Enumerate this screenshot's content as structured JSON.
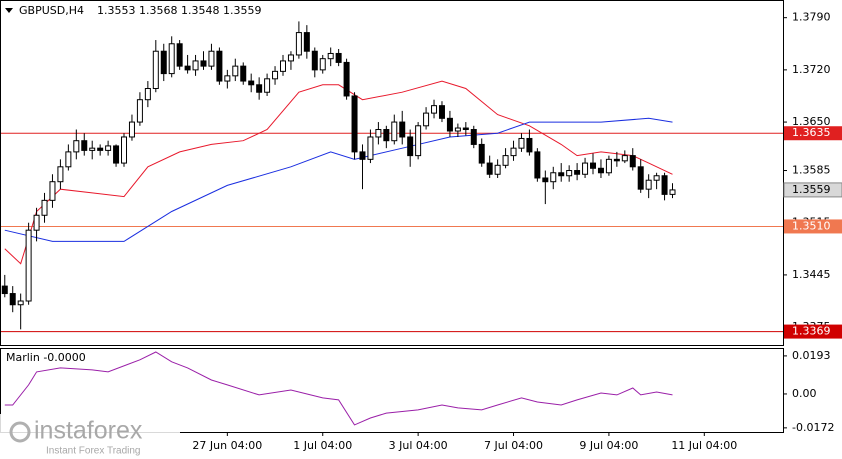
{
  "chart_data": {
    "type": "candlestick",
    "title": "GBPUSD,H4",
    "up_color": "#ffffff",
    "down_color": "#000000",
    "open": [
      1.343,
      1.342,
      1.3405,
      1.341,
      1.3505,
      1.3525,
      1.3545,
      1.357,
      1.359,
      1.361,
      1.3625,
      1.3612,
      1.3615,
      1.3612,
      1.3618,
      1.3595,
      1.363,
      1.365,
      1.368,
      1.3695,
      1.3745,
      1.3715,
      1.3755,
      1.3725,
      1.372,
      1.3732,
      1.3725,
      1.3745,
      1.3705,
      1.3712,
      1.3725,
      1.3705,
      1.37,
      1.369,
      1.3708,
      1.3718,
      1.3732,
      1.374,
      1.377,
      1.3745,
      1.372,
      1.3735,
      1.3742,
      1.373,
      1.3685,
      1.361,
      1.36,
      1.363,
      1.364,
      1.3625,
      1.365,
      1.363,
      1.3605,
      1.3645,
      1.3662,
      1.3672,
      1.3655,
      1.3638,
      1.3642,
      1.364,
      1.362,
      1.3595,
      1.358,
      1.3592,
      1.3605,
      1.3615,
      1.3628,
      1.361,
      1.3575,
      1.357,
      1.3582,
      1.3578,
      1.3585,
      1.358,
      1.3595,
      1.3588,
      1.3582,
      1.36,
      1.3598,
      1.3605,
      1.359,
      1.356,
      1.3572,
      1.3578,
      1.3553
    ],
    "high": [
      1.3445,
      1.343,
      1.342,
      1.3515,
      1.3535,
      1.3555,
      1.358,
      1.36,
      1.362,
      1.364,
      1.3635,
      1.3625,
      1.362,
      1.3625,
      1.362,
      1.3635,
      1.366,
      1.369,
      1.3705,
      1.376,
      1.3755,
      1.3765,
      1.376,
      1.374,
      1.374,
      1.3745,
      1.3755,
      1.375,
      1.372,
      1.3735,
      1.373,
      1.3715,
      1.371,
      1.3715,
      1.3725,
      1.374,
      1.3745,
      1.3785,
      1.378,
      1.375,
      1.374,
      1.375,
      1.3748,
      1.3735,
      1.369,
      1.362,
      1.364,
      1.365,
      1.3645,
      1.366,
      1.3665,
      1.364,
      1.365,
      1.367,
      1.368,
      1.3678,
      1.3665,
      1.3648,
      1.365,
      1.3645,
      1.3628,
      1.3605,
      1.36,
      1.3615,
      1.3625,
      1.3635,
      1.364,
      1.3615,
      1.3585,
      1.359,
      1.3595,
      1.3592,
      1.3595,
      1.3602,
      1.3608,
      1.36,
      1.3605,
      1.361,
      1.3612,
      1.3615,
      1.36,
      1.358,
      1.3582,
      1.3582,
      1.3568
    ],
    "low": [
      1.3415,
      1.3395,
      1.3372,
      1.3405,
      1.349,
      1.3515,
      1.3535,
      1.356,
      1.3585,
      1.36,
      1.3605,
      1.36,
      1.3605,
      1.3605,
      1.359,
      1.359,
      1.3625,
      1.3645,
      1.367,
      1.369,
      1.3705,
      1.371,
      1.372,
      1.3715,
      1.3712,
      1.372,
      1.372,
      1.37,
      1.3695,
      1.3705,
      1.37,
      1.369,
      1.368,
      1.3685,
      1.37,
      1.3712,
      1.372,
      1.3735,
      1.3735,
      1.371,
      1.3715,
      1.3725,
      1.3725,
      1.368,
      1.36,
      1.356,
      1.3595,
      1.362,
      1.3615,
      1.362,
      1.362,
      1.359,
      1.36,
      1.364,
      1.3655,
      1.365,
      1.363,
      1.363,
      1.3632,
      1.3615,
      1.359,
      1.3575,
      1.3575,
      1.3588,
      1.3598,
      1.361,
      1.3605,
      1.357,
      1.354,
      1.356,
      1.357,
      1.357,
      1.3572,
      1.3575,
      1.358,
      1.3575,
      1.3578,
      1.359,
      1.3595,
      1.3585,
      1.3555,
      1.3548,
      1.356,
      1.3545,
      1.3548
    ],
    "close": [
      1.342,
      1.3405,
      1.341,
      1.3505,
      1.3525,
      1.3545,
      1.357,
      1.359,
      1.361,
      1.3625,
      1.3612,
      1.3615,
      1.3612,
      1.3618,
      1.3595,
      1.363,
      1.365,
      1.368,
      1.3695,
      1.3745,
      1.3715,
      1.3755,
      1.3725,
      1.372,
      1.3732,
      1.3725,
      1.3745,
      1.3705,
      1.3712,
      1.3725,
      1.3705,
      1.37,
      1.369,
      1.3708,
      1.3718,
      1.3732,
      1.374,
      1.377,
      1.3745,
      1.372,
      1.3735,
      1.3742,
      1.373,
      1.3685,
      1.361,
      1.36,
      1.363,
      1.364,
      1.3625,
      1.365,
      1.363,
      1.3605,
      1.3645,
      1.3662,
      1.3672,
      1.3655,
      1.3638,
      1.3642,
      1.364,
      1.362,
      1.3595,
      1.358,
      1.3592,
      1.3605,
      1.3615,
      1.3628,
      1.361,
      1.3575,
      1.357,
      1.3582,
      1.3578,
      1.3585,
      1.358,
      1.3595,
      1.3588,
      1.3582,
      1.36,
      1.3598,
      1.3605,
      1.359,
      1.356,
      1.3572,
      1.3578,
      1.3553,
      1.3559
    ],
    "xlim": [
      -0.6,
      97.9
    ],
    "xticks": [
      {
        "value": 28,
        "label": "27 Jun 04:00"
      },
      {
        "value": 40,
        "label": "1 Jul 04:00"
      },
      {
        "value": 52,
        "label": "3 Jul 04:00"
      },
      {
        "value": 64,
        "label": "7 Jul 04:00"
      },
      {
        "value": 76,
        "label": "9 Jul 04:00"
      },
      {
        "value": 88,
        "label": "11 Jul 04:00"
      }
    ],
    "ylim": [
      1.3351,
      1.3807
    ],
    "yticks": [
      {
        "value": 1.379,
        "label": "1.3790"
      },
      {
        "value": 1.372,
        "label": "1.3720"
      },
      {
        "value": 1.365,
        "label": "1.3650"
      },
      1.3585,
      1.3515,
      1.3445,
      1.3375
    ],
    "lines": [
      {
        "color": "#e8192c",
        "x": [
          0,
          2,
          4,
          7,
          11,
          15,
          18,
          22,
          26,
          30,
          33,
          37,
          40,
          42,
          45,
          50,
          55,
          58,
          62,
          66,
          70,
          72,
          75,
          79,
          81,
          84
        ],
        "values": [
          1.348,
          1.346,
          1.353,
          1.356,
          1.3555,
          1.355,
          1.359,
          1.361,
          1.362,
          1.3625,
          1.364,
          1.369,
          1.37,
          1.37,
          1.368,
          1.369,
          1.3705,
          1.3695,
          1.366,
          1.3645,
          1.362,
          1.3605,
          1.361,
          1.3605,
          1.3595,
          1.358
        ]
      },
      {
        "color": "#1a2ee0",
        "x": [
          0,
          6,
          15,
          21,
          28,
          36,
          41,
          44,
          50,
          56,
          62,
          66,
          75,
          81,
          84
        ],
        "values": [
          1.3505,
          1.349,
          1.349,
          1.353,
          1.3565,
          1.359,
          1.361,
          1.36,
          1.3615,
          1.363,
          1.3635,
          1.365,
          1.365,
          1.3655,
          1.365
        ]
      }
    ],
    "levels": [
      {
        "value": 1.3635,
        "label": "1.3635",
        "color": "#e02020"
      },
      {
        "value": 1.351,
        "label": "1.3510",
        "color": "#f07850"
      },
      {
        "value": 1.3369,
        "label": "1.3369",
        "color": "#d00000"
      }
    ],
    "indicator": {
      "type": "line",
      "title": "Marlin -0.0000",
      "color": "#9a1fa8",
      "x": [
        0,
        1,
        3,
        4,
        7,
        11,
        13,
        17,
        19,
        21,
        23,
        26,
        28,
        32,
        36,
        40,
        42,
        44,
        46,
        48,
        52,
        55,
        57,
        60,
        62,
        65,
        67,
        70,
        72,
        75,
        77,
        79,
        80,
        82,
        84
      ],
      "values": [
        -0.0056,
        -0.0056,
        0.0046,
        0.0112,
        0.0132,
        0.0122,
        0.0112,
        0.0173,
        0.0213,
        0.0163,
        0.0132,
        0.0071,
        0.0046,
        -0.0005,
        0.002,
        -0.002,
        -0.003,
        -0.0157,
        -0.0122,
        -0.0097,
        -0.0081,
        -0.0056,
        -0.0071,
        -0.0081,
        -0.0056,
        -0.002,
        -0.0041,
        -0.0056,
        -0.003,
        0.0005,
        -0.0005,
        0.003,
        -0.0005,
        0.001,
        -0.0005
      ],
      "ylim": [
        -0.0193,
        0.0228
      ],
      "yticks": [
        0.0193,
        {
          "value": 0,
          "label": "0.00"
        },
        -0.0172
      ]
    },
    "watermark": {
      "brand": "instaforex",
      "tagline": "Instant Forex Trading"
    }
  }
}
